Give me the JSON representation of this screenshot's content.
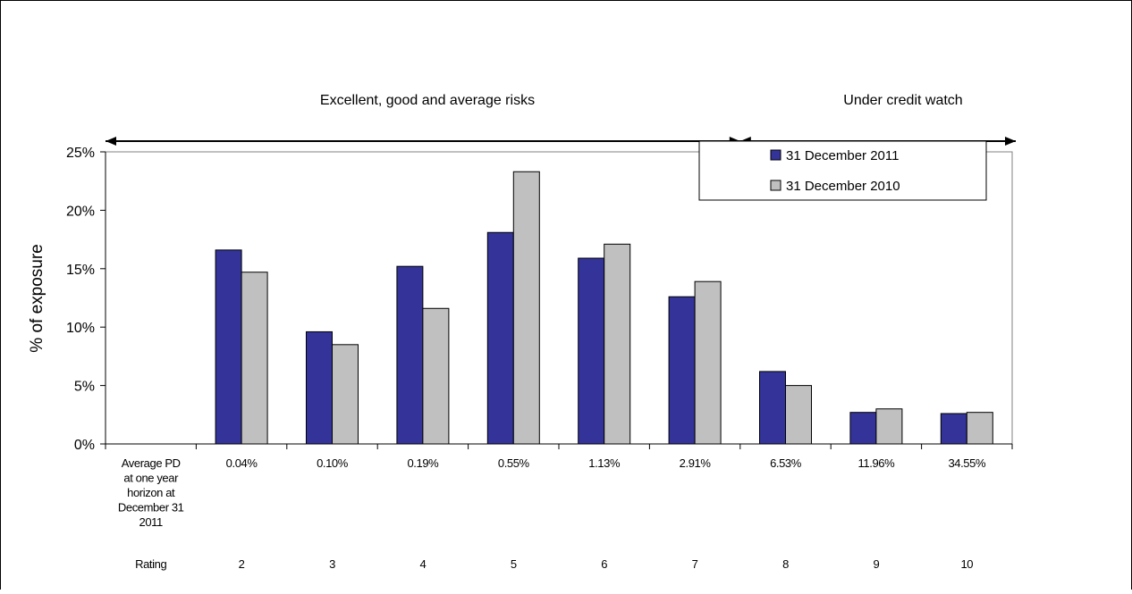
{
  "chart_data": {
    "type": "bar",
    "categories": [
      "",
      "2",
      "3",
      "4",
      "5",
      "6",
      "7",
      "8",
      "9",
      "10"
    ],
    "row_label": "Rating",
    "pd_label": [
      "Average PD",
      "at one year",
      "horizon at",
      "December 31",
      "2011"
    ],
    "pd_values": [
      "",
      "0.04%",
      "0.10%",
      "0.19%",
      "0.55%",
      "1.13%",
      "2.91%",
      "6.53%",
      "11.96%",
      "34.55%"
    ],
    "series": [
      {
        "name": "31 December 2011",
        "color": "#333399",
        "values": [
          null,
          16.6,
          9.6,
          15.2,
          18.1,
          15.9,
          12.6,
          6.2,
          2.7,
          2.6
        ]
      },
      {
        "name": "31 December 2010",
        "color": "#C0C0C0",
        "values": [
          null,
          14.7,
          8.5,
          11.6,
          23.3,
          17.1,
          13.9,
          5.0,
          3.0,
          2.7
        ]
      }
    ],
    "ylabel": "% of exposure",
    "ylim": [
      0,
      25
    ],
    "yticks": [
      0,
      5,
      10,
      15,
      20,
      25
    ],
    "ytick_labels": [
      "0%",
      "5%",
      "10%",
      "15%",
      "20%",
      "25%"
    ],
    "bands": [
      {
        "label": "Excellent, good and average risks",
        "from_category": 0,
        "to_category": 7
      },
      {
        "label": "Under credit watch",
        "from_category": 7,
        "to_category": 9
      }
    ],
    "grid": false,
    "legend_position": "top-right"
  }
}
